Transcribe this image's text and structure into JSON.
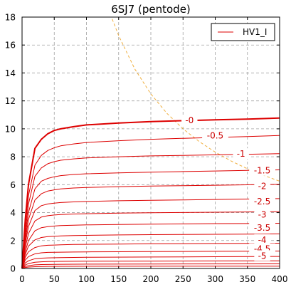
{
  "chart_data": {
    "type": "line",
    "title": "6SJ7 (pentode)",
    "xlabel": "",
    "ylabel": "",
    "xlim": [
      0,
      400
    ],
    "ylim": [
      0,
      18
    ],
    "xticks": [
      0,
      50,
      100,
      150,
      200,
      250,
      300,
      350,
      400
    ],
    "yticks": [
      0,
      2,
      4,
      6,
      8,
      10,
      12,
      14,
      16,
      18
    ],
    "grid": true,
    "legend": {
      "placement": "top-right",
      "entries": [
        "HV1_I"
      ]
    },
    "colors": {
      "curves": "#dd0000",
      "power_limit": "#f0b040",
      "grid": "#a0a0a0"
    },
    "series": [
      {
        "label": "-0",
        "bold": true,
        "points": [
          [
            0,
            0
          ],
          [
            5,
            3.5
          ],
          [
            10,
            6.0
          ],
          [
            20,
            8.6
          ],
          [
            30,
            9.25
          ],
          [
            40,
            9.65
          ],
          [
            50,
            9.88
          ],
          [
            60,
            10.0
          ],
          [
            80,
            10.15
          ],
          [
            100,
            10.28
          ],
          [
            150,
            10.42
          ],
          [
            200,
            10.52
          ],
          [
            250,
            10.58
          ],
          [
            300,
            10.64
          ],
          [
            350,
            10.7
          ],
          [
            400,
            10.77
          ]
        ]
      },
      {
        "label": "-0.5",
        "points": [
          [
            0,
            0
          ],
          [
            5,
            3.0
          ],
          [
            10,
            5.2
          ],
          [
            20,
            7.4
          ],
          [
            30,
            8.1
          ],
          [
            40,
            8.45
          ],
          [
            50,
            8.65
          ],
          [
            60,
            8.78
          ],
          [
            80,
            8.92
          ],
          [
            100,
            9.02
          ],
          [
            150,
            9.15
          ],
          [
            200,
            9.25
          ],
          [
            250,
            9.32
          ],
          [
            300,
            9.38
          ],
          [
            350,
            9.45
          ],
          [
            400,
            9.52
          ]
        ]
      },
      {
        "label": "-1",
        "points": [
          [
            0,
            0
          ],
          [
            5,
            2.6
          ],
          [
            10,
            4.6
          ],
          [
            20,
            6.6
          ],
          [
            30,
            7.2
          ],
          [
            40,
            7.5
          ],
          [
            50,
            7.65
          ],
          [
            60,
            7.75
          ],
          [
            80,
            7.85
          ],
          [
            100,
            7.92
          ],
          [
            150,
            8.0
          ],
          [
            200,
            8.06
          ],
          [
            250,
            8.1
          ],
          [
            300,
            8.14
          ],
          [
            350,
            8.18
          ],
          [
            400,
            8.22
          ]
        ]
      },
      {
        "label": "-1.5",
        "points": [
          [
            0,
            0
          ],
          [
            5,
            2.3
          ],
          [
            10,
            4.0
          ],
          [
            20,
            5.7
          ],
          [
            30,
            6.25
          ],
          [
            40,
            6.45
          ],
          [
            50,
            6.57
          ],
          [
            60,
            6.65
          ],
          [
            80,
            6.73
          ],
          [
            100,
            6.78
          ],
          [
            150,
            6.85
          ],
          [
            200,
            6.9
          ],
          [
            250,
            6.94
          ],
          [
            300,
            6.98
          ],
          [
            350,
            7.02
          ],
          [
            400,
            7.06
          ]
        ]
      },
      {
        "label": "-2",
        "points": [
          [
            0,
            0
          ],
          [
            5,
            2.0
          ],
          [
            10,
            3.5
          ],
          [
            20,
            4.9
          ],
          [
            30,
            5.35
          ],
          [
            40,
            5.55
          ],
          [
            50,
            5.63
          ],
          [
            60,
            5.7
          ],
          [
            80,
            5.76
          ],
          [
            100,
            5.8
          ],
          [
            150,
            5.86
          ],
          [
            200,
            5.9
          ],
          [
            250,
            5.93
          ],
          [
            300,
            5.96
          ],
          [
            350,
            5.99
          ],
          [
            400,
            6.02
          ]
        ]
      },
      {
        "label": "-2.5",
        "points": [
          [
            0,
            0
          ],
          [
            5,
            1.8
          ],
          [
            10,
            3.0
          ],
          [
            20,
            4.15
          ],
          [
            30,
            4.5
          ],
          [
            40,
            4.62
          ],
          [
            50,
            4.68
          ],
          [
            60,
            4.72
          ],
          [
            80,
            4.77
          ],
          [
            100,
            4.8
          ],
          [
            150,
            4.85
          ],
          [
            200,
            4.88
          ],
          [
            250,
            4.91
          ],
          [
            300,
            4.94
          ],
          [
            350,
            4.97
          ],
          [
            400,
            5.0
          ]
        ]
      },
      {
        "label": "-3",
        "points": [
          [
            0,
            0
          ],
          [
            5,
            1.5
          ],
          [
            10,
            2.5
          ],
          [
            20,
            3.4
          ],
          [
            30,
            3.68
          ],
          [
            40,
            3.78
          ],
          [
            50,
            3.83
          ],
          [
            60,
            3.86
          ],
          [
            80,
            3.9
          ],
          [
            100,
            3.92
          ],
          [
            150,
            3.96
          ],
          [
            200,
            3.99
          ],
          [
            250,
            4.01
          ],
          [
            300,
            4.03
          ],
          [
            350,
            4.05
          ],
          [
            400,
            4.07
          ]
        ]
      },
      {
        "label": "-3.5",
        "points": [
          [
            0,
            0
          ],
          [
            5,
            1.2
          ],
          [
            10,
            2.0
          ],
          [
            20,
            2.7
          ],
          [
            30,
            2.92
          ],
          [
            40,
            3.0
          ],
          [
            50,
            3.04
          ],
          [
            60,
            3.07
          ],
          [
            80,
            3.1
          ],
          [
            100,
            3.12
          ],
          [
            150,
            3.15
          ],
          [
            200,
            3.17
          ],
          [
            250,
            3.19
          ],
          [
            300,
            3.21
          ],
          [
            350,
            3.22
          ],
          [
            400,
            3.24
          ]
        ]
      },
      {
        "label": "-4",
        "points": [
          [
            0,
            0
          ],
          [
            5,
            1.0
          ],
          [
            10,
            1.6
          ],
          [
            20,
            2.05
          ],
          [
            30,
            2.22
          ],
          [
            40,
            2.28
          ],
          [
            50,
            2.31
          ],
          [
            60,
            2.33
          ],
          [
            80,
            2.36
          ],
          [
            100,
            2.37
          ],
          [
            150,
            2.4
          ],
          [
            200,
            2.42
          ],
          [
            250,
            2.43
          ],
          [
            300,
            2.45
          ],
          [
            350,
            2.46
          ],
          [
            400,
            2.48
          ]
        ]
      },
      {
        "label": "-4.5",
        "points": [
          [
            0,
            0
          ],
          [
            5,
            0.8
          ],
          [
            10,
            1.2
          ],
          [
            20,
            1.5
          ],
          [
            30,
            1.62
          ],
          [
            40,
            1.66
          ],
          [
            50,
            1.68
          ],
          [
            60,
            1.7
          ],
          [
            80,
            1.72
          ],
          [
            100,
            1.73
          ],
          [
            150,
            1.75
          ],
          [
            200,
            1.77
          ],
          [
            250,
            1.78
          ],
          [
            300,
            1.79
          ],
          [
            350,
            1.8
          ],
          [
            400,
            1.81
          ]
        ]
      },
      {
        "label": "-5",
        "points": [
          [
            0,
            0
          ],
          [
            5,
            0.6
          ],
          [
            10,
            0.85
          ],
          [
            20,
            1.05
          ],
          [
            30,
            1.12
          ],
          [
            40,
            1.15
          ],
          [
            50,
            1.16
          ],
          [
            60,
            1.17
          ],
          [
            80,
            1.18
          ],
          [
            100,
            1.19
          ],
          [
            150,
            1.2
          ],
          [
            200,
            1.21
          ],
          [
            250,
            1.22
          ],
          [
            300,
            1.23
          ],
          [
            350,
            1.24
          ],
          [
            400,
            1.25
          ]
        ]
      },
      {
        "label": "",
        "points": [
          [
            0,
            0
          ],
          [
            5,
            0.4
          ],
          [
            10,
            0.55
          ],
          [
            20,
            0.7
          ],
          [
            30,
            0.74
          ],
          [
            40,
            0.76
          ],
          [
            60,
            0.78
          ],
          [
            100,
            0.8
          ],
          [
            200,
            0.82
          ],
          [
            300,
            0.84
          ],
          [
            400,
            0.86
          ]
        ]
      },
      {
        "label": "",
        "points": [
          [
            0,
            0
          ],
          [
            5,
            0.25
          ],
          [
            10,
            0.35
          ],
          [
            20,
            0.45
          ],
          [
            30,
            0.48
          ],
          [
            40,
            0.5
          ],
          [
            60,
            0.51
          ],
          [
            100,
            0.52
          ],
          [
            200,
            0.53
          ],
          [
            300,
            0.54
          ],
          [
            400,
            0.55
          ]
        ]
      },
      {
        "label": "",
        "points": [
          [
            0,
            0
          ],
          [
            5,
            0.15
          ],
          [
            10,
            0.2
          ],
          [
            20,
            0.26
          ],
          [
            30,
            0.28
          ],
          [
            60,
            0.3
          ],
          [
            100,
            0.31
          ],
          [
            200,
            0.32
          ],
          [
            400,
            0.33
          ]
        ]
      },
      {
        "label": "",
        "points": [
          [
            0,
            0
          ],
          [
            5,
            0.07
          ],
          [
            10,
            0.1
          ],
          [
            20,
            0.13
          ],
          [
            40,
            0.15
          ],
          [
            100,
            0.16
          ],
          [
            400,
            0.17
          ]
        ]
      }
    ],
    "power_limit_curve": {
      "style": "dashed",
      "points": [
        [
          140,
          17.86
        ],
        [
          150,
          16.67
        ],
        [
          175,
          14.29
        ],
        [
          200,
          12.5
        ],
        [
          225,
          11.11
        ],
        [
          250,
          10.0
        ],
        [
          275,
          9.09
        ],
        [
          300,
          8.33
        ],
        [
          325,
          7.69
        ],
        [
          350,
          7.14
        ],
        [
          375,
          6.67
        ],
        [
          400,
          6.25
        ]
      ]
    },
    "curve_labels": [
      {
        "text": "-0",
        "x": 260,
        "y": 10.6
      },
      {
        "text": "-0.5",
        "x": 300,
        "y": 9.5
      },
      {
        "text": "-1",
        "x": 340,
        "y": 8.2
      },
      {
        "text": "-1.5",
        "x": 373,
        "y": 7.0
      },
      {
        "text": "-2",
        "x": 373,
        "y": 5.9
      },
      {
        "text": "-2.5",
        "x": 373,
        "y": 4.8
      },
      {
        "text": "-3",
        "x": 373,
        "y": 3.85
      },
      {
        "text": "-3.5",
        "x": 373,
        "y": 2.9
      },
      {
        "text": "-4",
        "x": 373,
        "y": 2.05
      },
      {
        "text": "-4.5",
        "x": 373,
        "y": 1.4
      },
      {
        "text": "-5",
        "x": 373,
        "y": 0.9
      }
    ]
  }
}
